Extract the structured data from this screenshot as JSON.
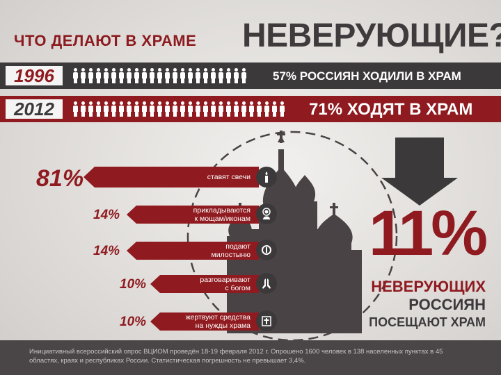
{
  "title": {
    "left": "ЧТО ДЕЛАЮТ В ХРАМЕ",
    "right": "НЕВЕРУЮЩИЕ?"
  },
  "years": [
    {
      "year": "1996",
      "text": "57% РОССИЯН ХОДИЛИ В ХРАМ",
      "share": 0.57
    },
    {
      "year": "2012",
      "text": "71% ХОДЯТ В ХРАМ",
      "share": 0.71
    }
  ],
  "activities": [
    {
      "pct": "81%",
      "label": "ставят свечи",
      "icon": "candle-icon"
    },
    {
      "pct": "14%",
      "label": "прикладываются\nк мощам/иконам",
      "icon": "icon-saint-icon"
    },
    {
      "pct": "14%",
      "label": "подают\nмилостыню",
      "icon": "coin-icon"
    },
    {
      "pct": "10%",
      "label": "разговаривают\nс богом",
      "icon": "praying-hands-icon"
    },
    {
      "pct": "10%",
      "label": "жертвуют средства\nна нужды храма",
      "icon": "donation-box-icon"
    }
  ],
  "result": {
    "pct": "11%",
    "line1": "НЕВЕРУЮЩИХ",
    "line2": "РОССИЯН",
    "line3": "ПОСЕЩАЮТ ХРАМ"
  },
  "footer": "Инициативный всероссийский опрос ВЦИОМ проведён 18-19 февраля 2012 г. Опрошено 1600 человек в 138 населенных пунктах в 45 областях, краях и республиках России. Статистическая погрешность не превышает 3,4%.",
  "colors": {
    "red": "#8f1a1f",
    "dark": "#3c393b",
    "church": "#4a4345"
  }
}
